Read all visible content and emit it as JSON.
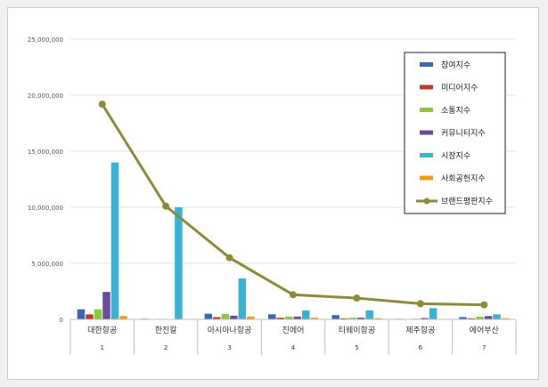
{
  "chart_data": {
    "type": "bar",
    "categories": [
      "대한항공",
      "한진칼",
      "아시아나항공",
      "진에어",
      "티웨이항공",
      "제주항공",
      "에어부산"
    ],
    "category_numbers": [
      "1",
      "2",
      "3",
      "4",
      "5",
      "6",
      "7"
    ],
    "ylim": [
      0,
      25000000
    ],
    "yticks": [
      0,
      5000000,
      10000000,
      15000000,
      20000000,
      25000000
    ],
    "ytick_labels": [
      "0",
      "5,000,000",
      "10,000,000",
      "15,000,000",
      "20,000,000",
      "25,000,000"
    ],
    "grid": true,
    "legend_position": "top-right",
    "series": [
      {
        "name": "참여지수",
        "type": "bar",
        "color": "#3a66b4",
        "values": [
          900000,
          60000,
          500000,
          450000,
          380000,
          50000,
          200000
        ]
      },
      {
        "name": "미디어지수",
        "type": "bar",
        "color": "#c0392b",
        "values": [
          450000,
          30000,
          200000,
          150000,
          100000,
          40000,
          100000
        ]
      },
      {
        "name": "소통지수",
        "type": "bar",
        "color": "#8dc63f",
        "values": [
          900000,
          50000,
          480000,
          250000,
          150000,
          60000,
          250000
        ]
      },
      {
        "name": "커뮤니티지수",
        "type": "bar",
        "color": "#6a4c9c",
        "values": [
          2450000,
          30000,
          330000,
          250000,
          150000,
          120000,
          300000
        ]
      },
      {
        "name": "시장지수",
        "type": "bar",
        "color": "#3eb1d0",
        "values": [
          14000000,
          10000000,
          3650000,
          800000,
          800000,
          1000000,
          450000
        ]
      },
      {
        "name": "사회공헌지수",
        "type": "bar",
        "color": "#f39c12",
        "values": [
          300000,
          20000,
          250000,
          150000,
          100000,
          30000,
          100000
        ]
      },
      {
        "name": "브랜드평판지수",
        "type": "line",
        "color": "#8b8b3a",
        "values": [
          19200000,
          10100000,
          5500000,
          2200000,
          1900000,
          1400000,
          1300000
        ]
      }
    ]
  }
}
